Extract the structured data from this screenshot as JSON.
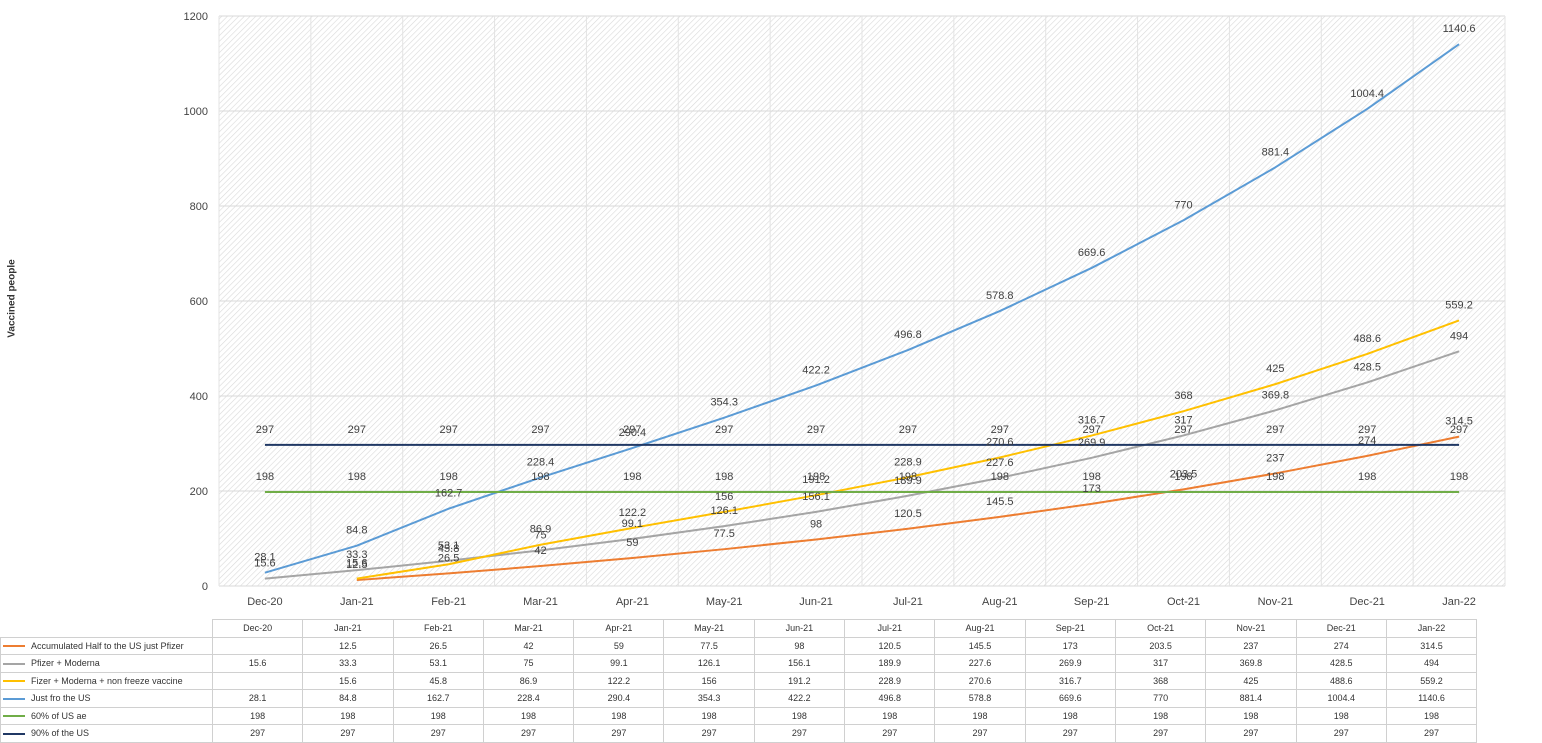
{
  "chart_data": {
    "type": "line",
    "ylabel": "Vaccined people",
    "xlabel": "",
    "ylim": [
      0,
      1200
    ],
    "yticks": [
      0,
      200,
      400,
      600,
      800,
      1000,
      1200
    ],
    "grid": true,
    "legend": "data table below chart",
    "categories": [
      "Dec-20",
      "Jan-21",
      "Feb-21",
      "Mar-21",
      "Apr-21",
      "May-21",
      "Jun-21",
      "Jul-21",
      "Aug-21",
      "Sep-21",
      "Oct-21",
      "Nov-21",
      "Dec-21",
      "Jan-22"
    ],
    "series": [
      {
        "name": "Accumulated Half to the US just  Pfizer",
        "color": "#ed7d31",
        "values": [
          null,
          12.5,
          26.5,
          42,
          59,
          77.5,
          98,
          120.5,
          145.5,
          173,
          203.5,
          237,
          274,
          314.5
        ],
        "labels": [
          "",
          "12.5",
          "26.5",
          "42",
          "59",
          "77.5",
          "98",
          "120.5",
          "145.5",
          "173",
          "203.5",
          "237",
          "274",
          "314.5"
        ]
      },
      {
        "name": "Pfizer + Moderna",
        "color": "#a5a5a5",
        "values": [
          15.6,
          33.3,
          53.1,
          75,
          99.1,
          126.1,
          156.1,
          189.9,
          227.6,
          269.9,
          317,
          369.8,
          428.5,
          494
        ],
        "labels": [
          "15.6",
          "33.3",
          "53.1",
          "75",
          "99.1",
          "126.1",
          "156.1",
          "189.9",
          "227.6",
          "269.9",
          "317",
          "369.8",
          "428.5",
          "494"
        ]
      },
      {
        "name": "Fizer + Moderna + non freeze vaccine",
        "color": "#ffc000",
        "values": [
          null,
          15.6,
          45.8,
          86.9,
          122.2,
          156,
          191.2,
          228.9,
          270.6,
          316.7,
          368,
          425,
          488.6,
          559.2
        ],
        "labels": [
          "",
          "15.6",
          "45.8",
          "86.9",
          "122.2",
          "156",
          "191.2",
          "228.9",
          "270.6",
          "316.7",
          "368",
          "425",
          "488.6",
          "559.2"
        ]
      },
      {
        "name": "Just fro the US",
        "color": "#5b9bd5",
        "values": [
          28.1,
          84.8,
          162.7,
          228.4,
          290.4,
          354.3,
          422.2,
          496.8,
          578.8,
          669.6,
          770,
          881.4,
          1004.4,
          1140.6
        ],
        "labels": [
          "28.1",
          "84.8",
          "162.7",
          "228.4",
          "290.4",
          "354.3",
          "422.2",
          "496.8",
          "578.8",
          "669.6",
          "770",
          "881.4",
          "1004.4",
          "1140.6"
        ]
      },
      {
        "name": "60% of US ae",
        "color": "#70ad47",
        "values": [
          198,
          198,
          198,
          198,
          198,
          198,
          198,
          198,
          198,
          198,
          198,
          198,
          198,
          198
        ],
        "labels": [
          "198",
          "198",
          "198",
          "198",
          "198",
          "198",
          "198",
          "198",
          "198",
          "198",
          "198",
          "198",
          "198",
          "198"
        ]
      },
      {
        "name": "90% of the US",
        "color": "#203864",
        "values": [
          297,
          297,
          297,
          297,
          297,
          297,
          297,
          297,
          297,
          297,
          297,
          297,
          297,
          297
        ],
        "labels": [
          "297",
          "297",
          "297",
          "297",
          "297",
          "297",
          "297",
          "297",
          "297",
          "297",
          "297",
          "297",
          "297",
          "297"
        ]
      }
    ]
  }
}
